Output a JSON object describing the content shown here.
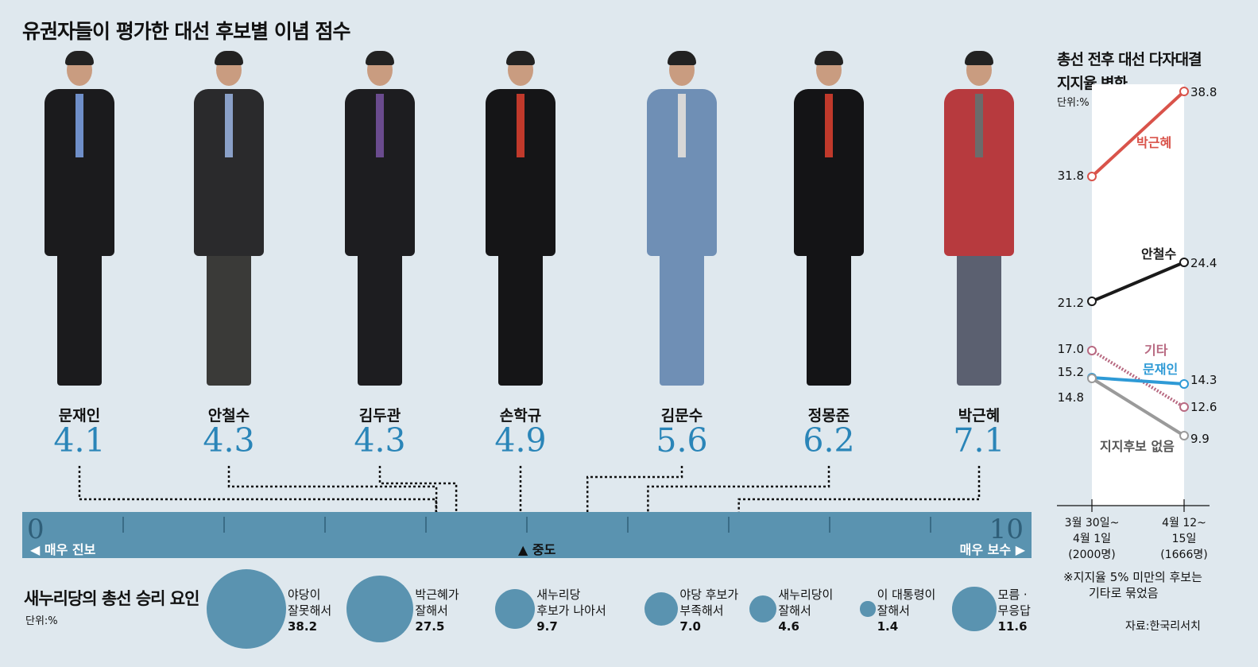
{
  "title": "유권자들이 평가한 대선 후보별 이념 점수",
  "candidates": [
    {
      "name": "문재인",
      "score": "4.1",
      "value": 4.1
    },
    {
      "name": "안철수",
      "score": "4.3",
      "value": 4.3
    },
    {
      "name": "김두관",
      "score": "4.3",
      "value": 4.3
    },
    {
      "name": "손학규",
      "score": "4.9",
      "value": 4.9
    },
    {
      "name": "김문수",
      "score": "5.6",
      "value": 5.6
    },
    {
      "name": "정몽준",
      "score": "6.2",
      "value": 6.2
    },
    {
      "name": "박근혜",
      "score": "7.1",
      "value": 7.1
    }
  ],
  "scale": {
    "min": "0",
    "max": "10",
    "left_label": "◀ 매우 진보",
    "right_label": "매우 보수 ▶",
    "mid_label": "▲ 중도"
  },
  "victory": {
    "title": "새누리당의 총선 승리 요인",
    "unit": "단위:%",
    "items": [
      {
        "label1": "야당이",
        "label2": "잘못해서",
        "value": 38.2,
        "value_text": "38.2"
      },
      {
        "label1": "박근혜가",
        "label2": "잘해서",
        "value": 27.5,
        "value_text": "27.5"
      },
      {
        "label1": "새누리당",
        "label2": "후보가 나아서",
        "value": 9.7,
        "value_text": "9.7"
      },
      {
        "label1": "야당 후보가",
        "label2": "부족해서",
        "value": 7.0,
        "value_text": "7.0"
      },
      {
        "label1": "새누리당이",
        "label2": "잘해서",
        "value": 4.6,
        "value_text": "4.6"
      },
      {
        "label1": "이 대통령이",
        "label2": "잘해서",
        "value": 1.4,
        "value_text": "1.4"
      },
      {
        "label1": "모름 ·",
        "label2": "무응답",
        "value": 11.6,
        "value_text": "11.6"
      }
    ]
  },
  "support": {
    "title1": "총선 전후 대선 다자대결",
    "title2": "지지율 변화",
    "unit": "단위:%",
    "periods": [
      {
        "line1": "3월 30일~",
        "line2": "4월 1일",
        "line3": "(2000명)"
      },
      {
        "line1": "4월 12~",
        "line2": "15일",
        "line3": "(1666명)"
      }
    ],
    "note1": "※지지율 5% 미만의 후보는",
    "note2": "기타로 묶었음",
    "source": "자료:한국리서치"
  },
  "colors": {
    "accent": "#2a85b8",
    "scale": "#5a93b0",
    "park": "#d9534a",
    "ahn": "#1a1a1a",
    "other": "#b86a82",
    "moon": "#2e9ad6",
    "none": "#9a9a9a"
  },
  "chart_data": [
    {
      "type": "scatter",
      "title": "유권자들이 평가한 대선 후보별 이념 점수",
      "x": [
        4.1,
        4.3,
        4.3,
        4.9,
        5.6,
        6.2,
        7.1
      ],
      "labels": [
        "문재인",
        "안철수",
        "김두관",
        "손학규",
        "김문수",
        "정몽준",
        "박근혜"
      ],
      "xlim": [
        0,
        10
      ]
    },
    {
      "type": "bar",
      "title": "새누리당의 총선 승리 요인",
      "categories": [
        "야당이 잘못해서",
        "박근혜가 잘해서",
        "새누리당 후보가 나아서",
        "야당 후보가 부족해서",
        "새누리당이 잘해서",
        "이 대통령이 잘해서",
        "모름 · 무응답"
      ],
      "values": [
        38.2,
        27.5,
        9.7,
        7.0,
        4.6,
        1.4,
        11.6
      ]
    },
    {
      "type": "line",
      "title": "총선 전후 대선 다자대결 지지율 변화",
      "categories": [
        "3월 30일~4월 1일",
        "4월 12~15일"
      ],
      "series": [
        {
          "name": "박근혜",
          "values": [
            31.8,
            38.8
          ],
          "labels": [
            "31.8",
            "38.8"
          ]
        },
        {
          "name": "안철수",
          "values": [
            21.2,
            24.4
          ],
          "labels": [
            "21.2",
            "24.4"
          ]
        },
        {
          "name": "기타",
          "values": [
            17.0,
            12.6
          ],
          "labels": [
            "17.0",
            "12.6"
          ]
        },
        {
          "name": "문재인",
          "values": [
            15.2,
            14.3
          ],
          "labels": [
            "15.2",
            "14.3"
          ]
        },
        {
          "name": "지지후보 없음",
          "values": [
            14.8,
            9.9
          ],
          "labels": [
            "14.8",
            "9.9"
          ]
        }
      ]
    }
  ]
}
